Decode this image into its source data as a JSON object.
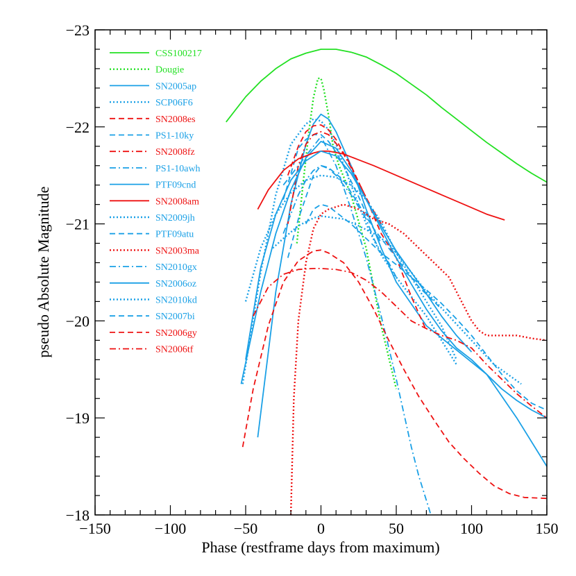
{
  "chart_data": {
    "type": "line",
    "title": "",
    "xlabel": "Phase (restframe days from maximum)",
    "ylabel": "pseudo Absolute Magnitude",
    "xlim": [
      -150,
      150
    ],
    "ylim": [
      -18,
      -23
    ],
    "y_inverted": true,
    "grid": false,
    "legend_position": "top-left",
    "x_ticks": [
      -150,
      -100,
      -50,
      0,
      50,
      100,
      150
    ],
    "y_ticks": [
      -18,
      -19,
      -20,
      -21,
      -22,
      -23
    ],
    "x_tick_labels": [
      "−150",
      "−100",
      "−50",
      "0",
      "50",
      "100",
      "150"
    ],
    "y_tick_labels": [
      "−18",
      "−19",
      "−20",
      "−21",
      "−22",
      "−23"
    ],
    "colors": {
      "green": "#22e022",
      "blue": "#1aa0e6",
      "red": "#ee1111"
    },
    "series": [
      {
        "name": "CSS100217",
        "color": "green",
        "dash": "solid",
        "x": [
          -63,
          -50,
          -40,
          -30,
          -20,
          -10,
          0,
          10,
          20,
          30,
          40,
          50,
          60,
          70,
          80,
          90,
          100,
          110,
          120,
          130,
          140,
          150
        ],
        "y": [
          -22.05,
          -22.31,
          -22.47,
          -22.6,
          -22.7,
          -22.76,
          -22.8,
          -22.8,
          -22.77,
          -22.72,
          -22.64,
          -22.55,
          -22.44,
          -22.33,
          -22.2,
          -22.08,
          -21.96,
          -21.84,
          -21.73,
          -21.62,
          -21.52,
          -21.43
        ]
      },
      {
        "name": "Dougie",
        "color": "green",
        "dash": "dot",
        "x": [
          -16,
          -12,
          -8,
          -5,
          -2,
          0,
          2,
          5,
          8,
          12,
          20,
          30,
          40,
          50
        ],
        "y": [
          -20.8,
          -21.4,
          -21.95,
          -22.3,
          -22.5,
          -22.5,
          -22.38,
          -22.12,
          -21.8,
          -21.6,
          -21.3,
          -20.75,
          -19.95,
          -19.3
        ]
      },
      {
        "name": "SN2005ap",
        "color": "blue",
        "dash": "solid",
        "x": [
          -42,
          -30,
          -20,
          -10,
          -5,
          0,
          5,
          10,
          20,
          30,
          40,
          50,
          70,
          90,
          110,
          130,
          150
        ],
        "y": [
          -18.8,
          -20.3,
          -21.2,
          -21.82,
          -22.03,
          -22.13,
          -22.08,
          -21.95,
          -21.6,
          -21.15,
          -20.75,
          -20.4,
          -19.95,
          -19.7,
          -19.45,
          -19.0,
          -18.5
        ]
      },
      {
        "name": "SCP06F6",
        "color": "blue",
        "dash": "dot",
        "x": [
          -52,
          -40,
          -30,
          -20,
          -10,
          -5,
          0,
          5,
          10,
          20,
          30,
          40,
          50,
          60,
          70,
          80,
          90
        ],
        "y": [
          -19.35,
          -20.5,
          -21.3,
          -21.82,
          -22.03,
          -22.08,
          -22.06,
          -21.97,
          -21.82,
          -21.4,
          -21.0,
          -20.68,
          -20.45,
          -20.25,
          -20.05,
          -19.8,
          -19.55
        ]
      },
      {
        "name": "SN2008es",
        "color": "red",
        "dash": "dash",
        "x": [
          -22,
          -15,
          -10,
          -5,
          0,
          5,
          10,
          15,
          20,
          25,
          30,
          35,
          40,
          50,
          60,
          70
        ],
        "y": [
          -21.5,
          -21.8,
          -21.95,
          -22.01,
          -22.02,
          -21.97,
          -21.87,
          -21.73,
          -21.6,
          -21.43,
          -21.27,
          -21.08,
          -20.9,
          -20.65,
          -20.25,
          -19.9
        ]
      },
      {
        "name": "PS1-10ky",
        "color": "blue",
        "dash": "dash",
        "x": [
          -25,
          -15,
          -10,
          -5,
          0,
          5,
          10,
          15,
          20,
          25,
          30,
          35,
          40
        ],
        "y": [
          -21.25,
          -21.78,
          -21.87,
          -21.92,
          -21.92,
          -21.85,
          -21.74,
          -21.6,
          -21.44,
          -21.28,
          -21.11,
          -20.95,
          -20.8
        ]
      },
      {
        "name": "SN2008fz",
        "color": "red",
        "dash": "dashdot",
        "x": [
          -22,
          -15,
          -10,
          -5,
          0,
          5,
          10,
          15,
          20,
          25,
          30,
          35,
          40
        ],
        "y": [
          -21.0,
          -21.6,
          -21.82,
          -21.92,
          -21.95,
          -21.92,
          -21.83,
          -21.72,
          -21.58,
          -21.43,
          -21.27,
          -21.13,
          -21.0
        ]
      },
      {
        "name": "PS1-10awh",
        "color": "blue",
        "dash": "dashdot",
        "x": [
          -25,
          -15,
          -10,
          -5,
          0,
          10,
          20,
          30,
          40,
          50,
          60,
          65,
          70,
          73
        ],
        "y": [
          -21.4,
          -21.6,
          -21.7,
          -21.8,
          -21.9,
          -21.6,
          -21.15,
          -20.65,
          -20.05,
          -19.4,
          -18.7,
          -18.4,
          -18.15,
          -18.0
        ]
      },
      {
        "name": "PTF09cnd",
        "color": "blue",
        "dash": "solid",
        "x": [
          -53,
          -40,
          -30,
          -20,
          -10,
          0,
          10,
          20,
          30,
          40,
          50,
          60,
          70,
          80,
          90,
          100,
          110,
          120,
          130,
          140,
          150
        ],
        "y": [
          -19.35,
          -20.3,
          -20.9,
          -21.35,
          -21.68,
          -21.85,
          -21.78,
          -21.55,
          -21.25,
          -20.95,
          -20.65,
          -20.38,
          -20.12,
          -19.9,
          -19.72,
          -19.6,
          -19.45,
          -19.3,
          -19.18,
          -19.08,
          -19.0
        ]
      },
      {
        "name": "SN2008am",
        "color": "red",
        "dash": "solid",
        "x": [
          -42,
          -35,
          -25,
          -15,
          -5,
          0,
          5,
          15,
          25,
          35,
          50,
          65,
          80,
          95,
          110,
          122
        ],
        "y": [
          -21.15,
          -21.35,
          -21.55,
          -21.67,
          -21.73,
          -21.75,
          -21.75,
          -21.72,
          -21.66,
          -21.6,
          -21.5,
          -21.4,
          -21.3,
          -21.2,
          -21.1,
          -21.04
        ]
      },
      {
        "name": "SN2009jh",
        "color": "blue",
        "dash": "dot",
        "x": [
          -32,
          -25,
          -15,
          -5,
          0,
          5,
          15,
          25,
          35,
          45,
          55,
          70,
          85,
          100,
          115,
          133
        ],
        "y": [
          -20.75,
          -20.85,
          -20.98,
          -21.06,
          -21.08,
          -21.07,
          -21.05,
          -20.98,
          -20.9,
          -20.8,
          -20.6,
          -20.3,
          -20.05,
          -19.8,
          -19.55,
          -19.35
        ]
      },
      {
        "name": "PTF09atu",
        "color": "blue",
        "dash": "dash",
        "x": [
          -22,
          -15,
          -5,
          0,
          5,
          15,
          25,
          35,
          45,
          55,
          65,
          75,
          80
        ],
        "y": [
          -20.65,
          -21.05,
          -21.5,
          -21.6,
          -21.58,
          -21.45,
          -21.2,
          -20.95,
          -20.75,
          -20.55,
          -20.35,
          -20.2,
          -20.12
        ]
      },
      {
        "name": "SN2003ma",
        "color": "red",
        "dash": "dot",
        "x": [
          -20,
          -18,
          -15,
          -10,
          -5,
          0,
          5,
          15,
          25,
          35,
          45,
          55,
          65,
          75,
          85,
          95,
          100,
          105,
          110,
          120,
          130,
          140,
          150
        ],
        "y": [
          -18.0,
          -19.2,
          -20.0,
          -20.6,
          -20.95,
          -21.1,
          -21.15,
          -21.2,
          -21.15,
          -21.05,
          -21.0,
          -20.9,
          -20.75,
          -20.6,
          -20.45,
          -20.15,
          -20.0,
          -19.9,
          -19.85,
          -19.85,
          -19.85,
          -19.82,
          -19.8
        ]
      },
      {
        "name": "SN2010gx",
        "color": "blue",
        "dash": "dashdot",
        "x": [
          -25,
          -15,
          -10,
          -5,
          0,
          5,
          10,
          20,
          30,
          35,
          40,
          45,
          50
        ],
        "y": [
          -20.9,
          -21.3,
          -21.45,
          -21.55,
          -21.6,
          -21.57,
          -21.5,
          -21.3,
          -21.05,
          -20.85,
          -20.7,
          -20.6,
          -20.45
        ]
      },
      {
        "name": "SN2006oz",
        "color": "blue",
        "dash": "solid",
        "x": [
          -50,
          -40,
          -30,
          -20,
          -10,
          0,
          10,
          20,
          30,
          40,
          50,
          60,
          70,
          80,
          90,
          100
        ],
        "y": [
          -19.6,
          -20.55,
          -21.1,
          -21.45,
          -21.65,
          -21.75,
          -21.7,
          -21.52,
          -21.25,
          -20.98,
          -20.72,
          -20.5,
          -20.28,
          -20.05,
          -19.85,
          -19.68
        ]
      },
      {
        "name": "SN2010kd",
        "color": "blue",
        "dash": "dot",
        "x": [
          -50,
          -40,
          -30,
          -20,
          -10,
          0,
          10,
          20,
          30,
          40,
          50,
          60,
          70,
          80,
          90
        ],
        "y": [
          -20.2,
          -20.75,
          -21.1,
          -21.32,
          -21.45,
          -21.5,
          -21.48,
          -21.4,
          -21.25,
          -21.02,
          -20.7,
          -20.45,
          -20.2,
          -19.95,
          -19.6
        ]
      },
      {
        "name": "SN2007bi",
        "color": "blue",
        "dash": "dash",
        "x": [
          -10,
          -5,
          0,
          5,
          10,
          20,
          30,
          40,
          50,
          60,
          70,
          80,
          90,
          100,
          110,
          120,
          130,
          140,
          150
        ],
        "y": [
          -21.0,
          -21.15,
          -21.2,
          -21.18,
          -21.12,
          -21.0,
          -20.85,
          -20.7,
          -20.58,
          -20.45,
          -20.32,
          -20.18,
          -20.02,
          -19.85,
          -19.65,
          -19.45,
          -19.28,
          -19.15,
          -19.08
        ]
      },
      {
        "name": "SN2006gy",
        "color": "red",
        "dash": "dash",
        "x": [
          -52,
          -45,
          -35,
          -25,
          -15,
          -5,
          0,
          5,
          15,
          25,
          35,
          45,
          55,
          65,
          75,
          85,
          95,
          105,
          115,
          125,
          135,
          150
        ],
        "y": [
          -18.7,
          -19.3,
          -19.95,
          -20.4,
          -20.62,
          -20.72,
          -20.73,
          -20.7,
          -20.6,
          -20.4,
          -20.12,
          -19.8,
          -19.5,
          -19.22,
          -18.98,
          -18.75,
          -18.58,
          -18.43,
          -18.3,
          -18.22,
          -18.18,
          -18.17
        ]
      },
      {
        "name": "SN2006tf",
        "color": "red",
        "dash": "dashdot",
        "x": [
          -45,
          -35,
          -25,
          -15,
          -5,
          0,
          10,
          20,
          30,
          40,
          50,
          60,
          70,
          80,
          90,
          100,
          110,
          120,
          130,
          140,
          150
        ],
        "y": [
          -20.05,
          -20.35,
          -20.48,
          -20.53,
          -20.54,
          -20.54,
          -20.53,
          -20.5,
          -20.42,
          -20.3,
          -20.15,
          -20.0,
          -19.92,
          -19.85,
          -19.8,
          -19.72,
          -19.55,
          -19.4,
          -19.25,
          -19.12,
          -19.0
        ]
      }
    ]
  }
}
